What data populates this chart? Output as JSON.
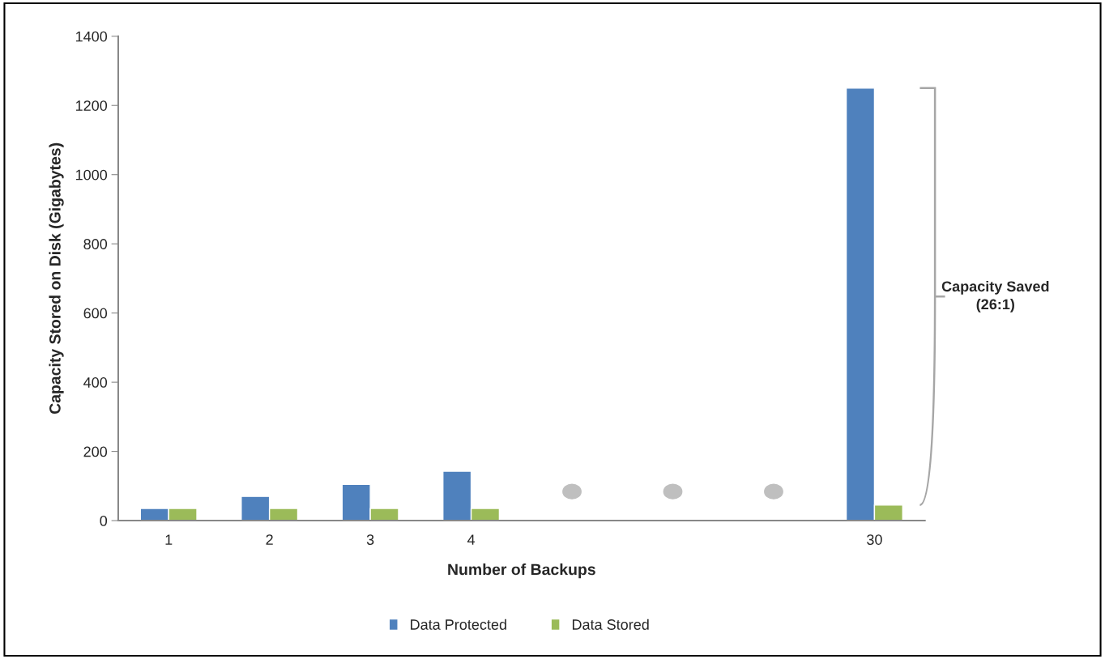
{
  "chart_data": {
    "type": "bar",
    "xlabel": "Number of Backups",
    "ylabel": "Capacity Stored on Disk (Gigabytes)",
    "categories": [
      "1",
      "2",
      "3",
      "4",
      null,
      null,
      null,
      "30"
    ],
    "series": [
      {
        "name": "Data Protected",
        "color": "#4f81bd",
        "values": [
          35,
          70,
          105,
          143,
          null,
          null,
          null,
          1250
        ]
      },
      {
        "name": "Data Stored",
        "color": "#9bbb59",
        "values": [
          35,
          35,
          35,
          35,
          null,
          null,
          null,
          45
        ]
      }
    ],
    "ylim": [
      0,
      1400
    ],
    "yticks": [
      0,
      200,
      400,
      600,
      800,
      1000,
      1200,
      1400
    ],
    "annotations": [
      "Capacity Saved\n(26:1)"
    ],
    "grid": false,
    "legend": "bottom"
  }
}
